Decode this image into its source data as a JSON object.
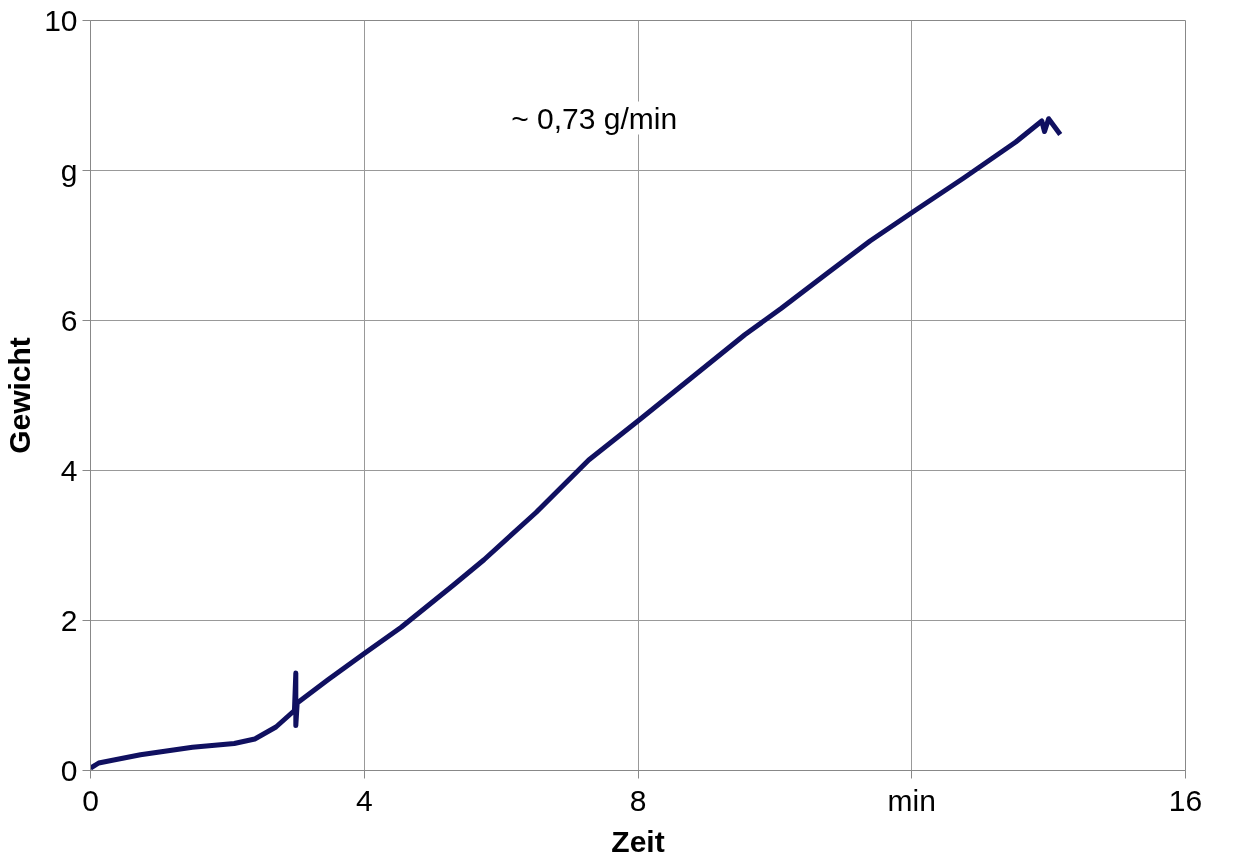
{
  "chart_data": {
    "type": "line",
    "xlabel": "Zeit",
    "ylabel": "Gewicht",
    "annotations": [
      "~ 0,73 g/min"
    ],
    "x": [
      0,
      0.12,
      0.73,
      1.49,
      2.1,
      2.4,
      2.71,
      2.98,
      3.0,
      3.0,
      3.02,
      3.47,
      4.0,
      4.54,
      5.3,
      5.75,
      6.51,
      7.28,
      8.04,
      8.8,
      9.56,
      10.09,
      10.78,
      11.39,
      12.07,
      12.76,
      13.52,
      13.9,
      13.94,
      14.0,
      14.17
    ],
    "series": [
      {
        "color": "#101060",
        "values": [
          0.03,
          0.1,
          0.21,
          0.31,
          0.36,
          0.42,
          0.58,
          0.8,
          1.3,
          0.6,
          0.9,
          1.21,
          1.56,
          1.91,
          2.47,
          2.81,
          3.44,
          4.14,
          4.69,
          5.25,
          5.81,
          6.16,
          6.64,
          7.06,
          7.48,
          7.9,
          8.38,
          8.66,
          8.52,
          8.69,
          8.48
        ]
      }
    ],
    "xlim": [
      0,
      16
    ],
    "xticks": [
      0,
      4,
      8,
      {
        "value": 12,
        "label": "min"
      },
      16
    ],
    "ylim": [
      0,
      10
    ],
    "yticks": [
      0,
      2,
      4,
      6,
      {
        "value": 8,
        "label": "g"
      },
      10
    ],
    "grid": true,
    "marker": "none",
    "line_style": "solid"
  }
}
